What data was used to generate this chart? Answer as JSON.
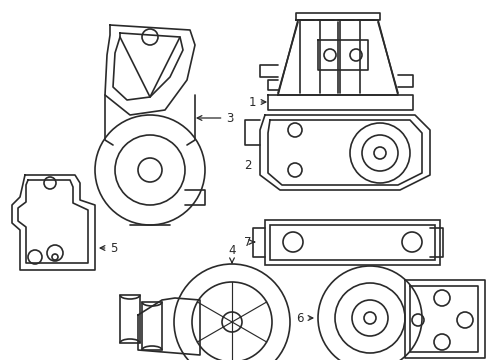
{
  "background_color": "#ffffff",
  "line_color": "#2a2a2a",
  "line_width": 1.2,
  "figsize": [
    4.89,
    3.6
  ],
  "dpi": 100
}
